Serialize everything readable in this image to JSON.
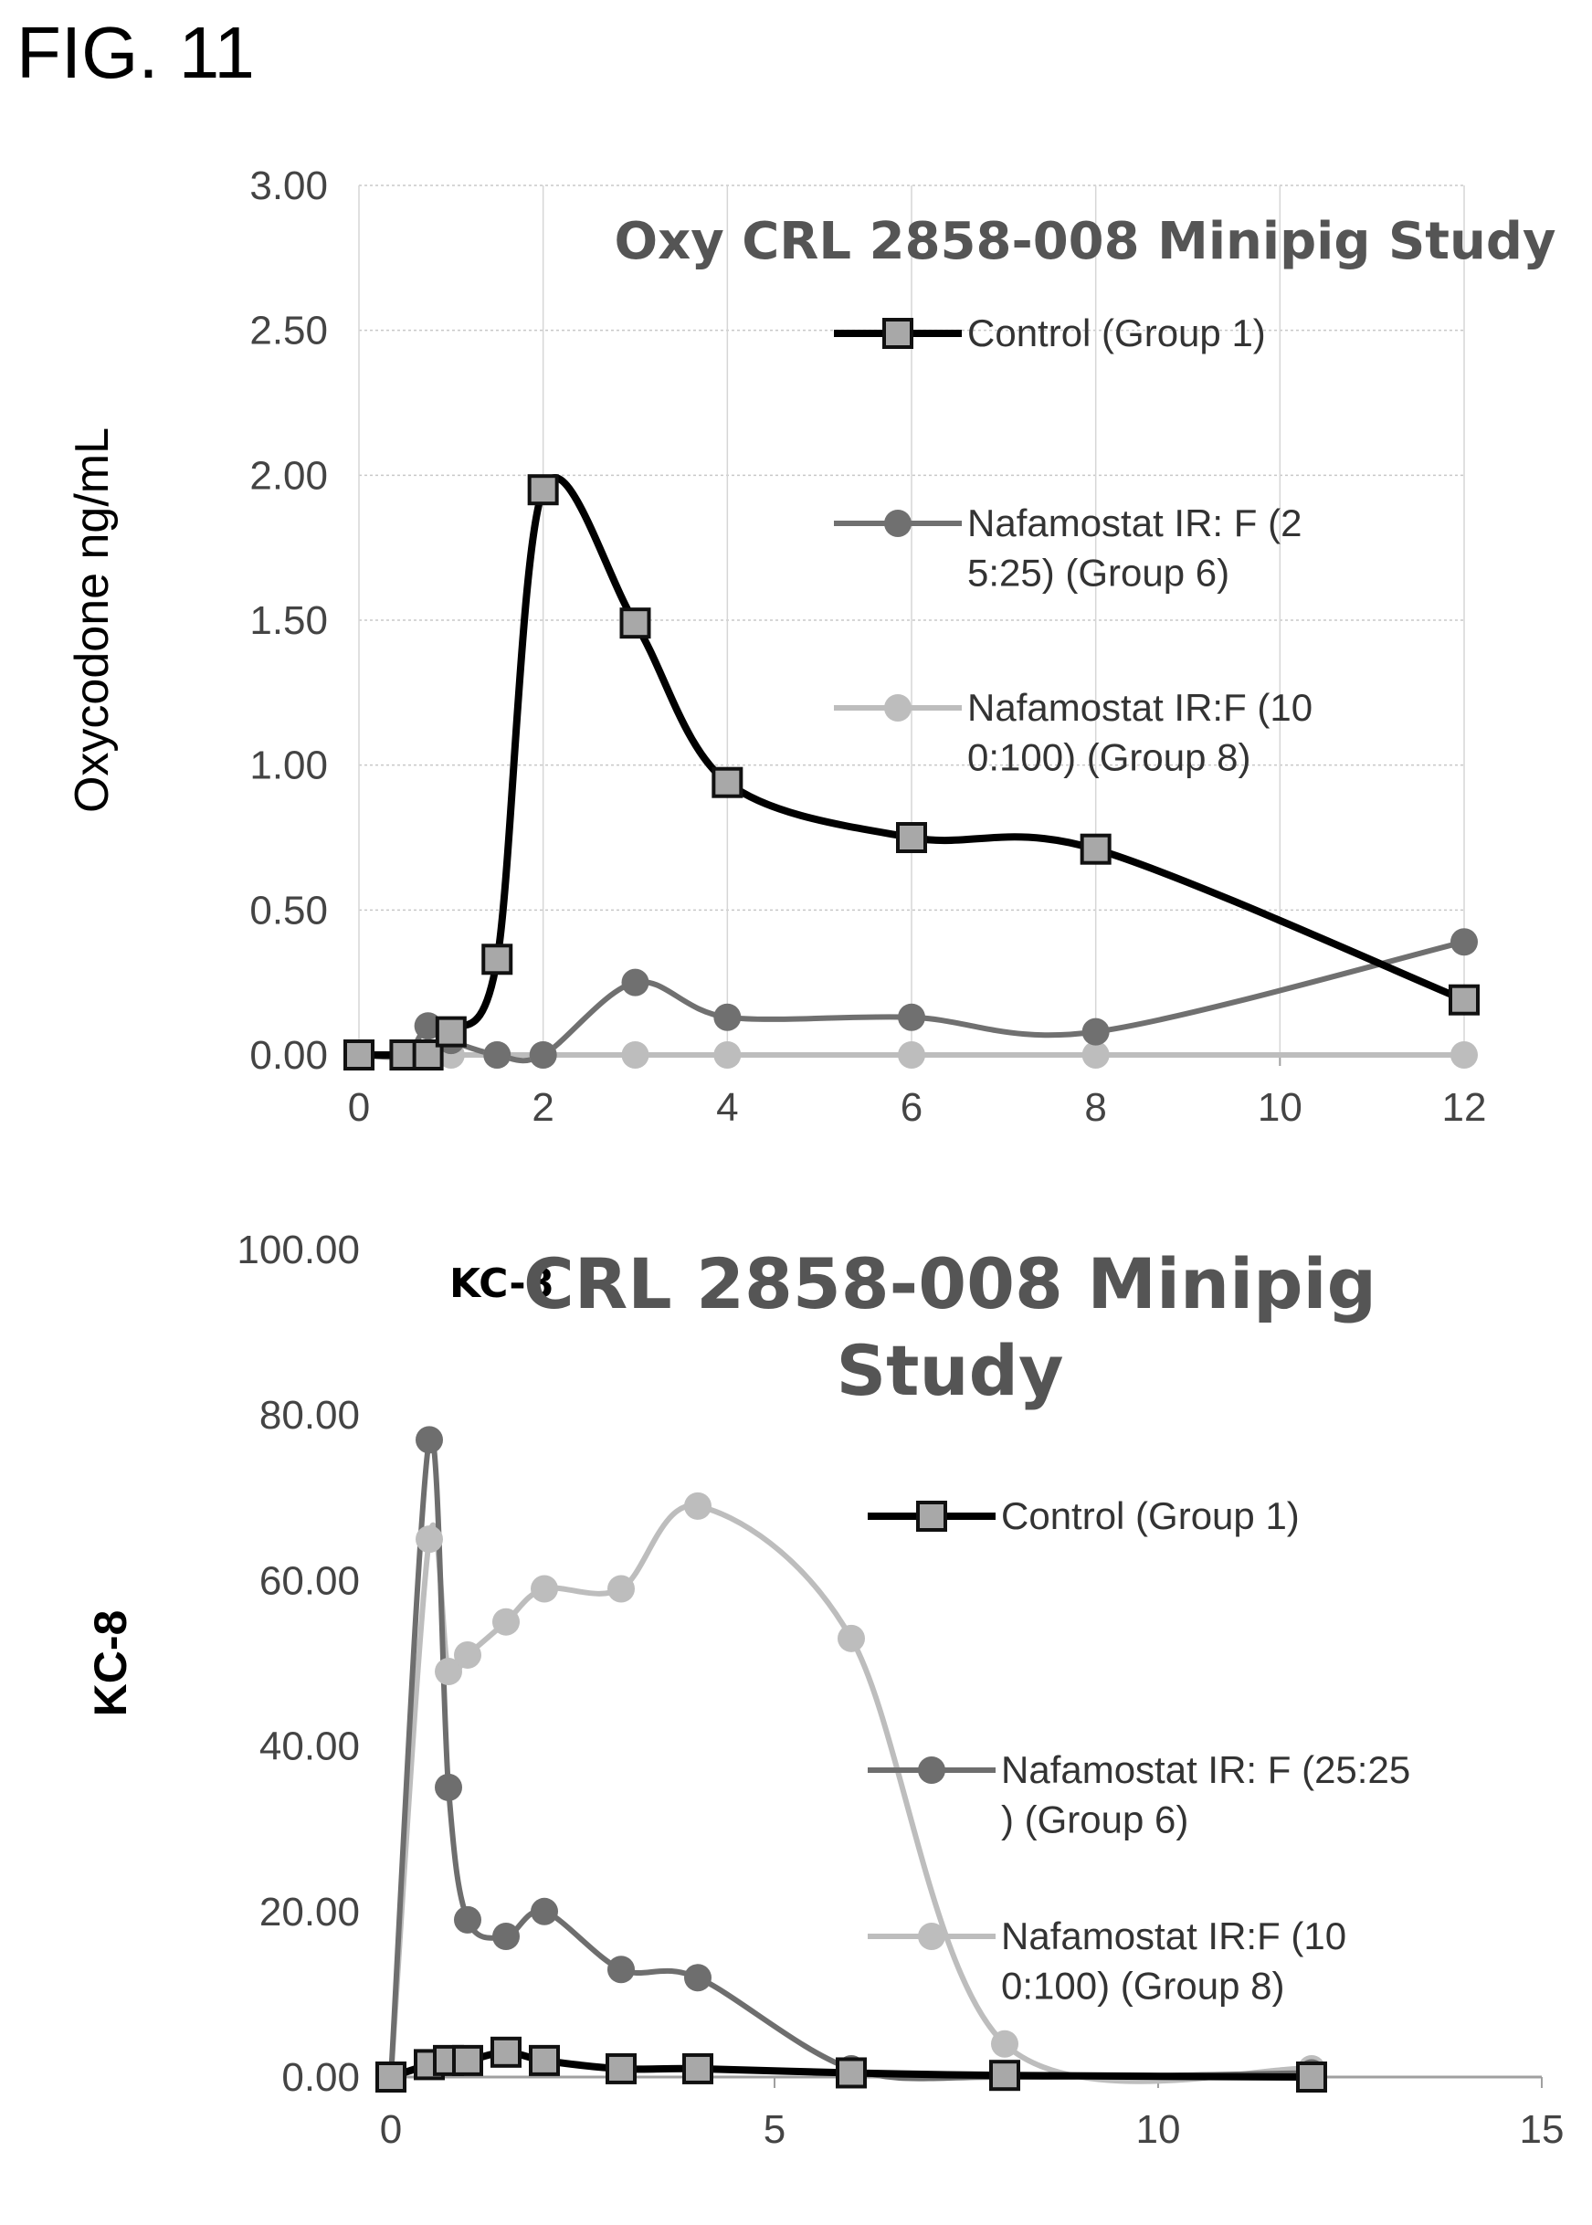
{
  "figure_label": "FIG. 11",
  "chart_data": [
    {
      "type": "line",
      "title": "Oxy CRL 2858-008 Minipig Study",
      "xlabel": "",
      "ylabel": "Oxycodone ng/mL",
      "xlim": [
        0,
        12
      ],
      "ylim": [
        0,
        3
      ],
      "x_ticks": [
        "0",
        "2",
        "4",
        "6",
        "8",
        "10",
        "12"
      ],
      "y_ticks": [
        "0.00",
        "0.50",
        "1.00",
        "1.50",
        "2.00",
        "2.50",
        "3.00"
      ],
      "grid": true,
      "legend_position": "right",
      "series": [
        {
          "name": "Control (Group 1)",
          "color": "#000000",
          "marker": "square",
          "x": [
            0,
            0.5,
            0.75,
            1,
            1.5,
            2,
            3,
            4,
            6,
            8,
            12
          ],
          "y": [
            0,
            0,
            0,
            0.08,
            0.33,
            1.95,
            1.49,
            0.94,
            0.75,
            0.71,
            0.19
          ]
        },
        {
          "name": "Nafamostat IR: F (25:25) (Group 6)",
          "color": "#707070",
          "marker": "circle",
          "x": [
            0,
            0.5,
            0.75,
            1,
            1.5,
            2,
            3,
            4,
            6,
            8,
            12
          ],
          "y": [
            0,
            0,
            0.1,
            0.05,
            0,
            0,
            0.25,
            0.13,
            0.13,
            0.08,
            0.39
          ]
        },
        {
          "name": "Nafamostat IR:F (100:100) (Group 8)",
          "color": "#bdbdbd",
          "marker": "circle",
          "x": [
            0,
            0.5,
            0.75,
            1,
            1.5,
            2,
            3,
            4,
            6,
            8,
            12
          ],
          "y": [
            0,
            0,
            0,
            0,
            0,
            0,
            0,
            0,
            0,
            0,
            0
          ]
        }
      ]
    },
    {
      "type": "line",
      "title": "CRL 2858-008 Minipig Study",
      "title_prefix": "KC-8",
      "xlabel": "",
      "ylabel": "KC-8",
      "xlim": [
        0,
        15
      ],
      "ylim": [
        0,
        100
      ],
      "x_ticks": [
        "0",
        "5",
        "10",
        "15"
      ],
      "y_ticks": [
        "0.00",
        "20.00",
        "40.00",
        "60.00",
        "80.00",
        "100.00"
      ],
      "grid": false,
      "legend_position": "right",
      "series": [
        {
          "name": "Control (Group 1)",
          "color": "#000000",
          "marker": "square",
          "x": [
            0,
            0.5,
            0.75,
            1,
            1.5,
            2,
            3,
            4,
            6,
            8,
            12
          ],
          "y": [
            0,
            1.5,
            2,
            2,
            3,
            2,
            1,
            1,
            0.5,
            0.2,
            0
          ]
        },
        {
          "name": "Nafamostat IR: F (25:25) (Group 6)",
          "color": "#6e6e6e",
          "marker": "circle",
          "x": [
            0,
            0.5,
            0.75,
            1,
            1.5,
            2,
            3,
            4,
            6,
            8,
            12
          ],
          "y": [
            0,
            77,
            35,
            19,
            17,
            20,
            13,
            12,
            1,
            0,
            0.5
          ]
        },
        {
          "name": "Nafamostat IR:F (100:100) (Group 8)",
          "color": "#bdbdbd",
          "marker": "circle",
          "x": [
            0,
            0.5,
            0.75,
            1,
            1.5,
            2,
            3,
            4,
            6,
            8,
            12
          ],
          "y": [
            0,
            65,
            49,
            51,
            55,
            59,
            59,
            69,
            53,
            4,
            1
          ]
        }
      ]
    }
  ]
}
